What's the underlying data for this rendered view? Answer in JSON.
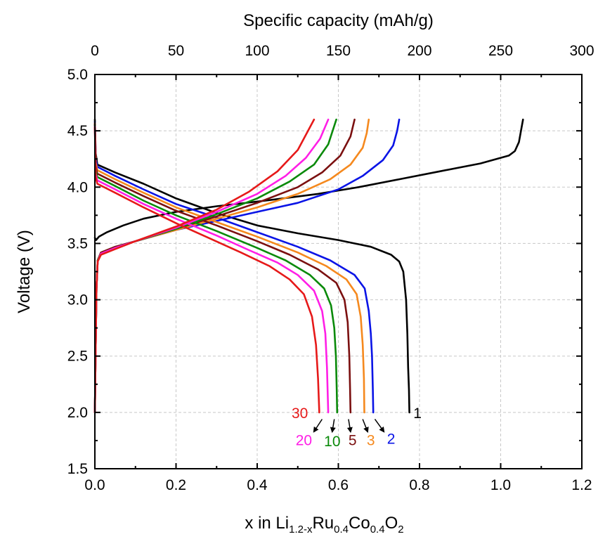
{
  "chart_data": {
    "type": "line",
    "title": "",
    "xlabel_parts": {
      "base": "x in Li",
      "sub1": "1.2-x",
      "mid1": "Ru",
      "sub2": "0.4",
      "mid2": "Co",
      "sub3": "0.4",
      "mid3": "O",
      "sub4": "2"
    },
    "ylabel": "Voltage (V)",
    "x2label": "Specific capacity (mAh/g)",
    "xlim": [
      0,
      1.2
    ],
    "ylim": [
      1.5,
      5.0
    ],
    "x2lim": [
      0,
      300
    ],
    "x_ticks": [
      "0.0",
      "0.2",
      "0.4",
      "0.6",
      "0.8",
      "1.0",
      "1.2"
    ],
    "y_ticks": [
      "1.5",
      "2.0",
      "2.5",
      "3.0",
      "3.5",
      "4.0",
      "4.5",
      "5.0"
    ],
    "x2_ticks": [
      "0",
      "50",
      "100",
      "150",
      "200",
      "250",
      "300"
    ],
    "grid": true,
    "series": [
      {
        "name": "1",
        "color": "#000000",
        "charge": [
          [
            0.0,
            3.55
          ],
          [
            0.003,
            3.53
          ],
          [
            0.01,
            3.56
          ],
          [
            0.03,
            3.6
          ],
          [
            0.07,
            3.66
          ],
          [
            0.12,
            3.72
          ],
          [
            0.2,
            3.78
          ],
          [
            0.3,
            3.83
          ],
          [
            0.42,
            3.88
          ],
          [
            0.55,
            3.94
          ],
          [
            0.65,
            4.0
          ],
          [
            0.75,
            4.07
          ],
          [
            0.85,
            4.14
          ],
          [
            0.95,
            4.21
          ],
          [
            1.02,
            4.28
          ],
          [
            1.035,
            4.32
          ],
          [
            1.045,
            4.4
          ],
          [
            1.05,
            4.5
          ],
          [
            1.055,
            4.6
          ]
        ],
        "discharge": [
          [
            0.0,
            4.6
          ],
          [
            0.002,
            4.3
          ],
          [
            0.006,
            4.2
          ],
          [
            0.05,
            4.13
          ],
          [
            0.12,
            4.03
          ],
          [
            0.2,
            3.9
          ],
          [
            0.3,
            3.77
          ],
          [
            0.4,
            3.66
          ],
          [
            0.5,
            3.59
          ],
          [
            0.6,
            3.53
          ],
          [
            0.68,
            3.47
          ],
          [
            0.73,
            3.4
          ],
          [
            0.75,
            3.34
          ],
          [
            0.76,
            3.25
          ],
          [
            0.767,
            3.0
          ],
          [
            0.77,
            2.7
          ],
          [
            0.772,
            2.4
          ],
          [
            0.774,
            2.2
          ],
          [
            0.775,
            2.0
          ]
        ]
      },
      {
        "name": "2",
        "color": "#0a14e6",
        "charge": [
          [
            0.0,
            2.0
          ],
          [
            0.002,
            2.6
          ],
          [
            0.004,
            3.1
          ],
          [
            0.007,
            3.35
          ],
          [
            0.015,
            3.42
          ],
          [
            0.05,
            3.47
          ],
          [
            0.1,
            3.52
          ],
          [
            0.2,
            3.62
          ],
          [
            0.3,
            3.7
          ],
          [
            0.4,
            3.78
          ],
          [
            0.5,
            3.86
          ],
          [
            0.6,
            3.98
          ],
          [
            0.66,
            4.1
          ],
          [
            0.71,
            4.24
          ],
          [
            0.735,
            4.37
          ],
          [
            0.745,
            4.5
          ],
          [
            0.75,
            4.6
          ]
        ],
        "discharge": [
          [
            0.0,
            4.58
          ],
          [
            0.002,
            4.25
          ],
          [
            0.006,
            4.18
          ],
          [
            0.05,
            4.1
          ],
          [
            0.12,
            3.98
          ],
          [
            0.2,
            3.85
          ],
          [
            0.3,
            3.73
          ],
          [
            0.4,
            3.6
          ],
          [
            0.5,
            3.47
          ],
          [
            0.58,
            3.35
          ],
          [
            0.64,
            3.22
          ],
          [
            0.665,
            3.1
          ],
          [
            0.675,
            2.9
          ],
          [
            0.68,
            2.7
          ],
          [
            0.683,
            2.5
          ],
          [
            0.685,
            2.2
          ],
          [
            0.686,
            2.0
          ]
        ]
      },
      {
        "name": "3",
        "color": "#f5891e",
        "charge": [
          [
            0.0,
            2.0
          ],
          [
            0.002,
            2.6
          ],
          [
            0.004,
            3.1
          ],
          [
            0.007,
            3.35
          ],
          [
            0.015,
            3.42
          ],
          [
            0.05,
            3.47
          ],
          [
            0.1,
            3.52
          ],
          [
            0.2,
            3.62
          ],
          [
            0.3,
            3.72
          ],
          [
            0.4,
            3.82
          ],
          [
            0.5,
            3.94
          ],
          [
            0.58,
            4.07
          ],
          [
            0.63,
            4.2
          ],
          [
            0.66,
            4.35
          ],
          [
            0.67,
            4.48
          ],
          [
            0.675,
            4.6
          ]
        ],
        "discharge": [
          [
            0.0,
            4.57
          ],
          [
            0.002,
            4.22
          ],
          [
            0.006,
            4.15
          ],
          [
            0.05,
            4.07
          ],
          [
            0.12,
            3.95
          ],
          [
            0.2,
            3.82
          ],
          [
            0.3,
            3.69
          ],
          [
            0.4,
            3.56
          ],
          [
            0.5,
            3.42
          ],
          [
            0.57,
            3.3
          ],
          [
            0.62,
            3.18
          ],
          [
            0.645,
            3.05
          ],
          [
            0.655,
            2.85
          ],
          [
            0.66,
            2.6
          ],
          [
            0.663,
            2.3
          ],
          [
            0.664,
            2.0
          ]
        ]
      },
      {
        "name": "5",
        "color": "#7b1010",
        "charge": [
          [
            0.0,
            2.0
          ],
          [
            0.002,
            2.6
          ],
          [
            0.004,
            3.1
          ],
          [
            0.007,
            3.35
          ],
          [
            0.015,
            3.42
          ],
          [
            0.05,
            3.47
          ],
          [
            0.1,
            3.52
          ],
          [
            0.2,
            3.63
          ],
          [
            0.3,
            3.74
          ],
          [
            0.4,
            3.86
          ],
          [
            0.5,
            4.0
          ],
          [
            0.56,
            4.13
          ],
          [
            0.605,
            4.28
          ],
          [
            0.63,
            4.45
          ],
          [
            0.64,
            4.6
          ]
        ],
        "discharge": [
          [
            0.0,
            4.56
          ],
          [
            0.002,
            4.19
          ],
          [
            0.006,
            4.12
          ],
          [
            0.05,
            4.04
          ],
          [
            0.12,
            3.92
          ],
          [
            0.2,
            3.79
          ],
          [
            0.3,
            3.66
          ],
          [
            0.4,
            3.52
          ],
          [
            0.48,
            3.4
          ],
          [
            0.55,
            3.27
          ],
          [
            0.595,
            3.15
          ],
          [
            0.615,
            3.0
          ],
          [
            0.623,
            2.8
          ],
          [
            0.627,
            2.5
          ],
          [
            0.629,
            2.2
          ],
          [
            0.63,
            2.0
          ]
        ]
      },
      {
        "name": "10",
        "color": "#0a8a0a",
        "charge": [
          [
            0.0,
            2.0
          ],
          [
            0.002,
            2.6
          ],
          [
            0.004,
            3.1
          ],
          [
            0.007,
            3.35
          ],
          [
            0.015,
            3.41
          ],
          [
            0.05,
            3.46
          ],
          [
            0.1,
            3.52
          ],
          [
            0.2,
            3.63
          ],
          [
            0.3,
            3.76
          ],
          [
            0.4,
            3.9
          ],
          [
            0.48,
            4.05
          ],
          [
            0.54,
            4.2
          ],
          [
            0.575,
            4.38
          ],
          [
            0.595,
            4.6
          ]
        ],
        "discharge": [
          [
            0.0,
            4.55
          ],
          [
            0.002,
            4.15
          ],
          [
            0.006,
            4.09
          ],
          [
            0.05,
            4.01
          ],
          [
            0.12,
            3.88
          ],
          [
            0.2,
            3.75
          ],
          [
            0.3,
            3.61
          ],
          [
            0.4,
            3.46
          ],
          [
            0.47,
            3.35
          ],
          [
            0.53,
            3.22
          ],
          [
            0.565,
            3.1
          ],
          [
            0.582,
            2.95
          ],
          [
            0.59,
            2.75
          ],
          [
            0.594,
            2.5
          ],
          [
            0.596,
            2.2
          ],
          [
            0.597,
            2.0
          ]
        ]
      },
      {
        "name": "20",
        "color": "#ff1ee6",
        "charge": [
          [
            0.0,
            2.0
          ],
          [
            0.002,
            2.6
          ],
          [
            0.004,
            3.1
          ],
          [
            0.007,
            3.34
          ],
          [
            0.015,
            3.41
          ],
          [
            0.05,
            3.46
          ],
          [
            0.1,
            3.52
          ],
          [
            0.2,
            3.64
          ],
          [
            0.3,
            3.78
          ],
          [
            0.4,
            3.94
          ],
          [
            0.47,
            4.1
          ],
          [
            0.52,
            4.26
          ],
          [
            0.555,
            4.43
          ],
          [
            0.575,
            4.6
          ]
        ],
        "discharge": [
          [
            0.0,
            4.54
          ],
          [
            0.002,
            4.12
          ],
          [
            0.006,
            4.06
          ],
          [
            0.05,
            3.98
          ],
          [
            0.12,
            3.85
          ],
          [
            0.2,
            3.72
          ],
          [
            0.3,
            3.57
          ],
          [
            0.38,
            3.44
          ],
          [
            0.45,
            3.33
          ],
          [
            0.5,
            3.22
          ],
          [
            0.54,
            3.08
          ],
          [
            0.56,
            2.9
          ],
          [
            0.568,
            2.7
          ],
          [
            0.572,
            2.4
          ],
          [
            0.575,
            2.0
          ]
        ]
      },
      {
        "name": "30",
        "color": "#e61919",
        "charge": [
          [
            0.0,
            2.0
          ],
          [
            0.002,
            2.6
          ],
          [
            0.004,
            3.1
          ],
          [
            0.007,
            3.34
          ],
          [
            0.015,
            3.4
          ],
          [
            0.05,
            3.45
          ],
          [
            0.1,
            3.52
          ],
          [
            0.2,
            3.65
          ],
          [
            0.3,
            3.8
          ],
          [
            0.38,
            3.96
          ],
          [
            0.45,
            4.14
          ],
          [
            0.5,
            4.33
          ],
          [
            0.54,
            4.6
          ]
        ],
        "discharge": [
          [
            0.0,
            4.53
          ],
          [
            0.002,
            4.09
          ],
          [
            0.006,
            4.03
          ],
          [
            0.05,
            3.95
          ],
          [
            0.12,
            3.82
          ],
          [
            0.2,
            3.68
          ],
          [
            0.28,
            3.55
          ],
          [
            0.36,
            3.42
          ],
          [
            0.43,
            3.3
          ],
          [
            0.48,
            3.18
          ],
          [
            0.515,
            3.05
          ],
          [
            0.535,
            2.85
          ],
          [
            0.545,
            2.6
          ],
          [
            0.55,
            2.3
          ],
          [
            0.553,
            2.0
          ]
        ]
      }
    ],
    "labels": [
      {
        "text": "1",
        "color": "#000000",
        "x": 0.795,
        "y": 2.0
      },
      {
        "text": "30",
        "color": "#e61919",
        "x": 0.505,
        "y": 2.0
      },
      {
        "text": "20",
        "color": "#ff1ee6",
        "x": 0.515,
        "y": 1.76
      },
      {
        "text": "10",
        "color": "#0a8a0a",
        "x": 0.585,
        "y": 1.75
      },
      {
        "text": "5",
        "color": "#7b1010",
        "x": 0.635,
        "y": 1.76
      },
      {
        "text": "3",
        "color": "#f5891e",
        "x": 0.68,
        "y": 1.76
      },
      {
        "text": "2",
        "color": "#0a14e6",
        "x": 0.73,
        "y": 1.77
      }
    ],
    "arrows": [
      {
        "from": [
          0.56,
          1.94
        ],
        "to": [
          0.54,
          1.83
        ]
      },
      {
        "from": [
          0.59,
          1.94
        ],
        "to": [
          0.585,
          1.83
        ]
      },
      {
        "from": [
          0.625,
          1.94
        ],
        "to": [
          0.63,
          1.83
        ]
      },
      {
        "from": [
          0.66,
          1.94
        ],
        "to": [
          0.672,
          1.83
        ]
      },
      {
        "from": [
          0.69,
          1.94
        ],
        "to": [
          0.712,
          1.83
        ]
      }
    ]
  }
}
